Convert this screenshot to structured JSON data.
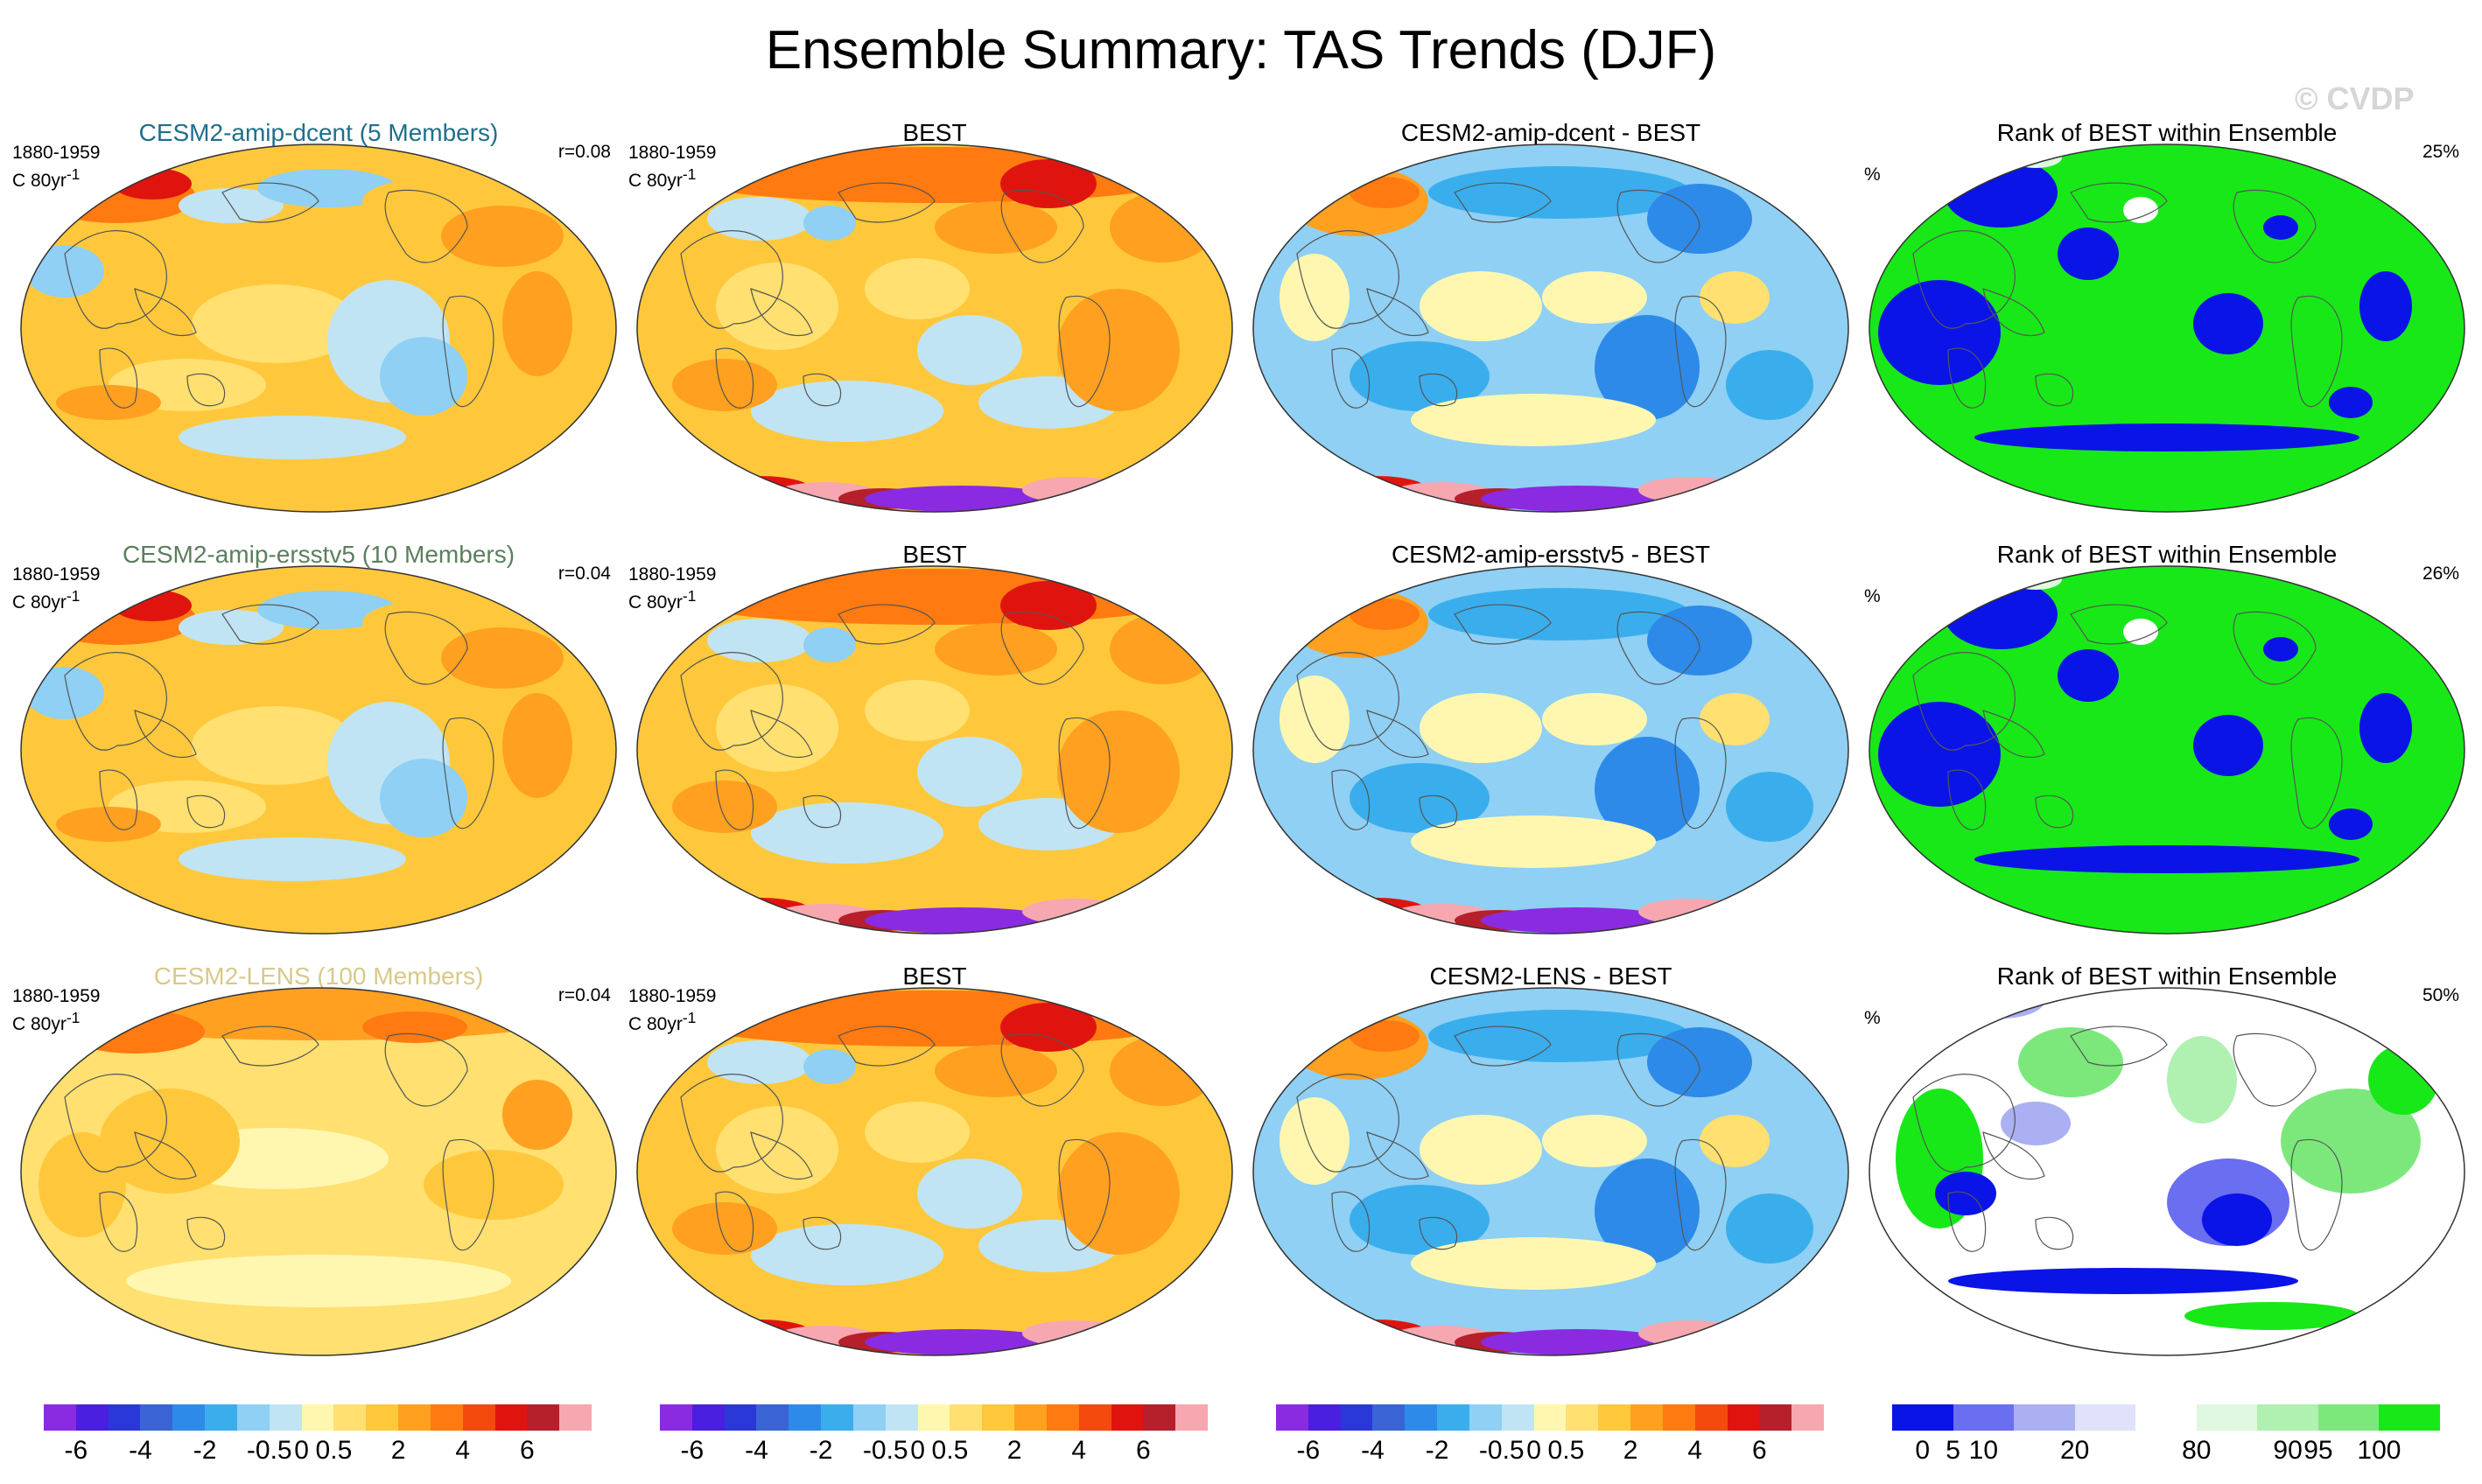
{
  "title": "Ensemble Summary: TAS Trends (DJF)",
  "watermark": "© CVDP",
  "rows": [
    {
      "model": {
        "title": "CESM2-amip-dcent (5 Members)",
        "title_color": "#1f6f8b",
        "period": "1880-1959",
        "units": "C 80yr",
        "r": "r=0.08"
      },
      "obs": {
        "title": "BEST",
        "period": "1880-1959",
        "units": "C 80yr"
      },
      "diff": {
        "title": "CESM2-amip-dcent - BEST"
      },
      "rank": {
        "title": "Rank of BEST within Ensemble",
        "percent": "25%",
        "pct_label": "%"
      }
    },
    {
      "model": {
        "title": "CESM2-amip-ersstv5 (10 Members)",
        "title_color": "#5b7f5e",
        "period": "1880-1959",
        "units": "C 80yr",
        "r": "r=0.04"
      },
      "obs": {
        "title": "BEST",
        "period": "1880-1959",
        "units": "C 80yr"
      },
      "diff": {
        "title": "CESM2-amip-ersstv5 - BEST"
      },
      "rank": {
        "title": "Rank of BEST within Ensemble",
        "percent": "26%",
        "pct_label": "%"
      }
    },
    {
      "model": {
        "title": "CESM2-LENS (100 Members)",
        "title_color": "#d8c98a",
        "period": "1880-1959",
        "units": "C 80yr",
        "r": "r=0.04"
      },
      "obs": {
        "title": "BEST",
        "period": "1880-1959",
        "units": "C 80yr"
      },
      "diff": {
        "title": "CESM2-LENS - BEST"
      },
      "rank": {
        "title": "Rank of BEST within Ensemble",
        "percent": "50%",
        "pct_label": "%"
      }
    }
  ],
  "units_superscript": "-1",
  "chart_data": {
    "type": "heatmap",
    "projection": "Robinson (Pacific-centered)",
    "colorbars": [
      {
        "name": "tas-trend",
        "colors": [
          "#8a2be2",
          "#4b1fe0",
          "#2b38d8",
          "#3a64d6",
          "#2e8ae8",
          "#3aaeec",
          "#8fd0f4",
          "#c0e4f4",
          "#fff7b0",
          "#ffe070",
          "#ffc83c",
          "#ffa020",
          "#ff7a10",
          "#f54a0e",
          "#e0140f",
          "#b5202a",
          "#f7a7b0"
        ],
        "tick_labels": [
          "-6",
          "-4",
          "-2",
          "-0.5",
          "0",
          "0.5",
          "2",
          "4",
          "6"
        ],
        "tick_boundaries": [
          1,
          3,
          5,
          7,
          8,
          9,
          11,
          13,
          15
        ]
      },
      {
        "name": "rank",
        "colors": [
          "#0a14e6",
          "#6a6ef0",
          "#aab0f2",
          "#dfe2f8",
          "#ffffff",
          "#e0f8e0",
          "#b0f0b0",
          "#7ce87c",
          "#18e818"
        ],
        "tick_labels": [
          "0",
          "5",
          "10",
          "20",
          "80",
          "90",
          "95",
          "100"
        ],
        "tick_boundaries": [
          0.5,
          1,
          1.5,
          3,
          5,
          6.5,
          7,
          8
        ]
      }
    ]
  }
}
